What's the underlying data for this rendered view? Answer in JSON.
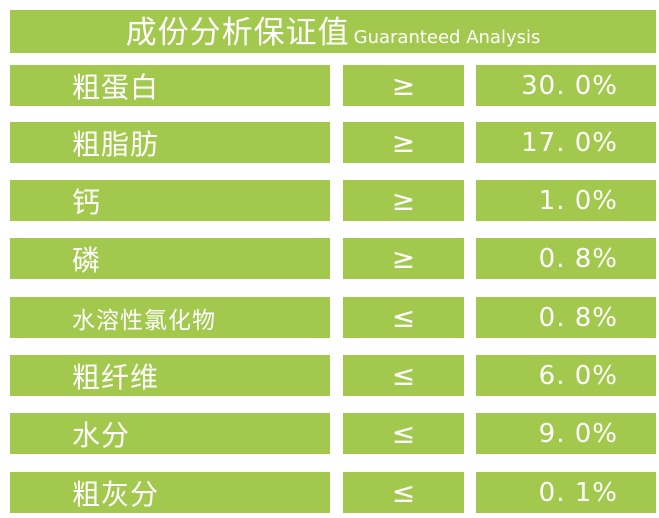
{
  "header": {
    "title_cn": "成份分析保证值",
    "title_en": "Guaranteed Analysis"
  },
  "colors": {
    "cell_background": "#a2c94e",
    "text": "#ffffff",
    "page_background": "#ffffff"
  },
  "rows": [
    {
      "name": "粗蛋白",
      "operator": "≥",
      "value": "30. 0%"
    },
    {
      "name": "粗脂肪",
      "operator": "≥",
      "value": "17. 0%"
    },
    {
      "name": "钙",
      "operator": "≥",
      "value": "1. 0%"
    },
    {
      "name": "磷",
      "operator": "≥",
      "value": "0. 8%"
    },
    {
      "name": "水溶性氯化物",
      "operator": "≤",
      "value": "0. 8%"
    },
    {
      "name": "粗纤维",
      "operator": "≤",
      "value": "6. 0%"
    },
    {
      "name": "水分",
      "operator": "≤",
      "value": "9. 0%"
    },
    {
      "name": "粗灰分",
      "operator": "≤",
      "value": "0. 1%"
    }
  ]
}
